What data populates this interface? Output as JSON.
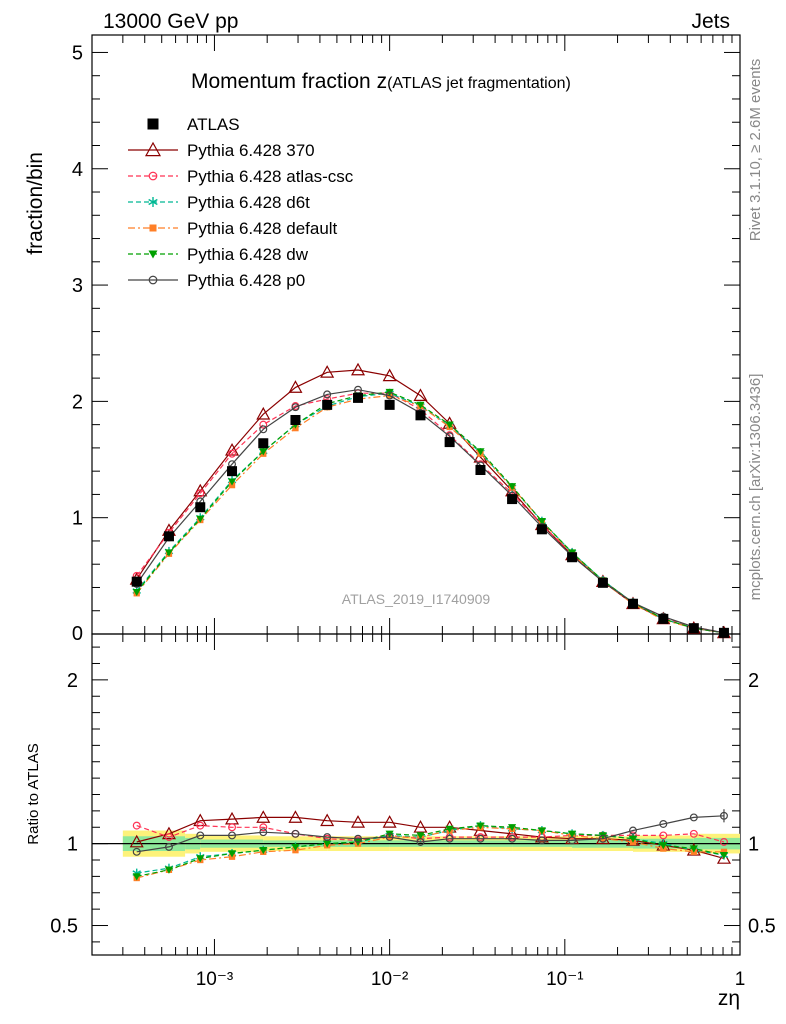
{
  "header": {
    "left": "13000 GeV pp",
    "right": "Jets"
  },
  "side_text": {
    "rivet": "Rivet 3.1.10, ≥ 2.6M events",
    "mcplots": "mcplots.cern.ch [arXiv:1306.3436]"
  },
  "chart_data": [
    {
      "type": "line",
      "title_main": "Momentum fraction ",
      "title_z": "z",
      "title_sub": "(ATLAS jet fragmentation)",
      "ylabel": "fraction/bin",
      "xlabel": "zη",
      "watermark": "ATLAS_2019_I1740909",
      "xscale": "log",
      "xlim": [
        0.0002,
        1
      ],
      "ylim": [
        0,
        5.15
      ],
      "yticks": [
        "1",
        "2",
        "3",
        "4",
        "5"
      ],
      "x": [
        0.00036,
        0.00055,
        0.00083,
        0.00126,
        0.0019,
        0.0029,
        0.0044,
        0.0066,
        0.01,
        0.015,
        0.022,
        0.033,
        0.05,
        0.074,
        0.11,
        0.165,
        0.245,
        0.365,
        0.545,
        0.81
      ],
      "data": {
        "name": "ATLAS",
        "values": [
          0.45,
          0.84,
          1.09,
          1.4,
          1.64,
          1.84,
          1.97,
          2.03,
          1.97,
          1.88,
          1.65,
          1.41,
          1.16,
          0.9,
          0.66,
          0.44,
          0.26,
          0.13,
          0.05,
          0.01
        ]
      },
      "series": [
        {
          "name": "Pythia 6.428 370",
          "color": "#8b0000",
          "dash": "solid",
          "marker": "triangle-open",
          "values": [
            0.47,
            0.89,
            1.23,
            1.58,
            1.89,
            2.12,
            2.25,
            2.27,
            2.22,
            2.05,
            1.81,
            1.52,
            1.23,
            0.94,
            0.68,
            0.45,
            0.26,
            0.13,
            0.05,
            0.01
          ]
        },
        {
          "name": "Pythia 6.428 atlas-csc",
          "color": "#ff3355",
          "dash": "dashed",
          "marker": "circle-open",
          "values": [
            0.5,
            0.87,
            1.21,
            1.55,
            1.8,
            1.96,
            2.02,
            2.07,
            2.07,
            1.93,
            1.71,
            1.46,
            1.21,
            0.94,
            0.69,
            0.46,
            0.27,
            0.14,
            0.06,
            0.01
          ]
        },
        {
          "name": "Pythia 6.428 d6t",
          "color": "#00b894",
          "dash": "dashed",
          "marker": "star",
          "values": [
            0.37,
            0.71,
            1.0,
            1.32,
            1.57,
            1.8,
            1.96,
            2.04,
            2.07,
            1.96,
            1.79,
            1.56,
            1.26,
            0.97,
            0.7,
            0.46,
            0.27,
            0.13,
            0.05,
            0.01
          ]
        },
        {
          "name": "Pythia 6.428 default",
          "color": "#ff7f27",
          "dash": "dashdot",
          "marker": "square",
          "values": [
            0.35,
            0.69,
            0.98,
            1.28,
            1.55,
            1.77,
            1.95,
            2.02,
            2.05,
            1.96,
            1.78,
            1.55,
            1.26,
            0.97,
            0.69,
            0.45,
            0.26,
            0.12,
            0.05,
            0.01
          ]
        },
        {
          "name": "Pythia 6.428 dw",
          "color": "#00a000",
          "dash": "dashed",
          "marker": "triangle-down",
          "values": [
            0.36,
            0.7,
            0.99,
            1.31,
            1.57,
            1.8,
            1.98,
            2.05,
            2.08,
            1.97,
            1.8,
            1.57,
            1.27,
            0.97,
            0.7,
            0.46,
            0.27,
            0.13,
            0.05,
            0.01
          ]
        },
        {
          "name": "Pythia 6.428 p0",
          "color": "#444444",
          "dash": "solid",
          "marker": "circle-open",
          "values": [
            0.43,
            0.83,
            1.14,
            1.46,
            1.76,
            1.95,
            2.06,
            2.1,
            2.05,
            1.9,
            1.7,
            1.45,
            1.19,
            0.92,
            0.67,
            0.45,
            0.27,
            0.15,
            0.06,
            0.01
          ]
        }
      ]
    },
    {
      "type": "line",
      "ylabel": "Ratio to ATLAS",
      "ylim": [
        0.32,
        2.28
      ],
      "yticks": [
        "0.5",
        "1",
        "2"
      ],
      "xticks": [
        "10⁻³",
        "10⁻²",
        "10⁻¹",
        "1"
      ],
      "band": {
        "edges": [
          0.0003,
          0.00068,
          0.00083,
          0.0019,
          0.0044,
          0.01,
          0.022,
          0.05,
          0.11,
          0.245,
          0.545,
          1
        ],
        "outer": [
          0.08,
          0.06,
          0.05,
          0.045,
          0.045,
          0.045,
          0.045,
          0.045,
          0.045,
          0.05,
          0.06
        ],
        "inner": [
          0.045,
          0.035,
          0.025,
          0.02,
          0.02,
          0.02,
          0.02,
          0.02,
          0.025,
          0.03,
          0.035
        ]
      },
      "series": [
        {
          "name": "Pythia 6.428 370",
          "values": [
            1.01,
            1.06,
            1.14,
            1.15,
            1.16,
            1.16,
            1.14,
            1.13,
            1.13,
            1.1,
            1.1,
            1.08,
            1.06,
            1.04,
            1.03,
            1.03,
            1.02,
            0.99,
            0.96,
            0.91
          ]
        },
        {
          "name": "Pythia 6.428 atlas-csc",
          "values": [
            1.11,
            1.04,
            1.11,
            1.1,
            1.1,
            1.06,
            1.03,
            1.02,
            1.05,
            1.03,
            1.04,
            1.04,
            1.04,
            1.04,
            1.05,
            1.05,
            1.05,
            1.05,
            1.06,
            1.01
          ]
        },
        {
          "name": "Pythia 6.428 d6t",
          "values": [
            0.82,
            0.85,
            0.92,
            0.94,
            0.96,
            0.98,
            1.0,
            1.01,
            1.05,
            1.04,
            1.08,
            1.11,
            1.09,
            1.08,
            1.06,
            1.05,
            1.03,
            1.0,
            0.96,
            0.93
          ]
        },
        {
          "name": "Pythia 6.428 default",
          "values": [
            0.79,
            0.84,
            0.9,
            0.92,
            0.95,
            0.96,
            0.99,
            1.0,
            1.04,
            1.04,
            1.08,
            1.1,
            1.09,
            1.08,
            1.05,
            1.03,
            1.01,
            0.97,
            0.95,
            0.95
          ]
        },
        {
          "name": "Pythia 6.428 dw",
          "values": [
            0.8,
            0.84,
            0.91,
            0.94,
            0.96,
            0.98,
            1.0,
            1.01,
            1.06,
            1.05,
            1.09,
            1.11,
            1.1,
            1.08,
            1.06,
            1.05,
            1.03,
            0.99,
            0.97,
            0.93
          ]
        },
        {
          "name": "Pythia 6.428 p0",
          "values": [
            0.95,
            0.98,
            1.05,
            1.05,
            1.07,
            1.06,
            1.04,
            1.03,
            1.04,
            1.01,
            1.03,
            1.03,
            1.03,
            1.02,
            1.02,
            1.03,
            1.08,
            1.12,
            1.16,
            1.17
          ]
        }
      ]
    }
  ]
}
